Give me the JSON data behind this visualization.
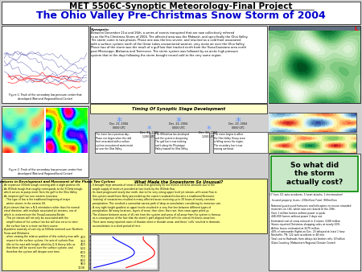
{
  "title1": "MET 5506C-Synoptic Meteorology-Final Project",
  "title2": "The Ohio Valley Pre-Christmas Snow Storm of 2004",
  "bg_color": "#d0d0d0",
  "title1_color": "#000000",
  "title2_color": "#0000cc",
  "synopsis_title": "Synopsis:",
  "synopsis_text": "Between December 21st and 26th, a series of events transpired that are now collectively referred\nto as the Pre-Christmas Storm of 2004. The affected area was the Midwest, and specifically the Ohio Valley.\nThe storm came in two phases. Phase one was the less severe, and resulted as a cold front associated\nwith a surface cyclone north of the Great Lakes encountered warmer, very moist air over the Ohio Valley.\nPhase two of the storm was the result of a gulf low that tracked north from the Texas/Louisiana area north\npast Mississippi, Alabama and Tennessee. The storm system was followed by an arctic high pressure\nsystem that in the days following the storm brought record cold to the very same region.",
  "timing_title": "Timing Of Synoptic Stage Development",
  "what_made_title": "What Made the Snowstorm So Unusual?",
  "what_made_text": "- It brought large amounts of snow to areas that generally do not receive extreme amounts due to the\n  ample supply of moisture provided at low levels by the 850mb flow.\n- Its track progressed nearly due north, due to the very strong upper level jet stream--with zonal flow in\n  this system would have likely proceeded up the eastern seaboard to become a traditional Noreaster.\n- 'training' of snowstorms resulted in many affected areas receiving up to 20 hours of nearly constant\n  precipitation. This resulted a somewhat narrow path of deep accumulations considering its immense size.\n- A very tight height gradient at upper levels resulted in a very fine line between different types of\n  precipitation. At many locations, layers of snow, then sleet, then rain, then snow again piled up.\n- The distance between areas of all-rain from the system and areas of all-snow from the system is famous\n  as a consequence of the fact that the storm's path aligned itself with the critical thickness snow line.\n- There were many reported cases of thunder-sleet or thunder-snow, and these 'cells' resulted in dramatic\n  accumulations in a short period of time.",
  "key_title": "Key Synoptic Features in Development and Movement of the Phase Two Cyclone",
  "key_text": "- An expansive 500mb trough covering with a slight positive tilt.\n- An 850mb trough that roughly corresponds to the 500mb trough,\n  which serves to pump moist from the gulf to the Ohio Valley.\n- An incipient gulf low over eastern Louisiana.\n   - This type of low is the traditional beginning of major\n     winter storms in the eastern US.\n- A jet stream that has a N-S orientation rather than the normal\n  zonal direction, with multiple associated jet streams, one of\n  which is centered over the Texas/Louisiana Border.\n   - This jet stream will not only be associated with the\n     amplification of the surface low but will also serve to steer\n     the surface low to a more northern course.\n- A positive anomaly of vorticity at 500mb centered over Northern\n  Texas and Oklahoma.\n   - when viewing the relative position of this vorticity max with\n     respect to the surface cyclone, the axis of cyclonic flow\n     tilts to the east with height, which by Q-G theory tells us\n     that there will be ascent over the surface cyclone, and\n     therefore the cyclone will deepen over time.",
  "cost_title": "So what did\nthe storm\nactually cost?",
  "cost_text": "17 lives (11 auto accidents, 5 heart attacks, 1 electrocution)\n- Insured property losses: $230 million; Total: $900 million\n- National guard used Humvees and helicopters to rescue stranded\n  motorists on I-64, which was not cleared til the 29th.\n- Over 1 million homes without power at peak.\n- 448,000 homes without power 2 days out.\n- Estimated cost of snow removal in 4 states: $108 million\n- Stores reported Christmas shopping sales at nearly 60%.\n- Airline losses estimated at $270 million.\n- 40% of nationwide flights on Dec. 23 delayed at least 1 hour.\n- Nashville, TN: 122 auto accidents in 48 min.\n- Total cost to Railroads from delays b/o broken rails: $7million\n  (Data Courtesy: Midwestern Regional Climate Center)",
  "yellow_bg": "#ffff99",
  "light_yellow": "#ffffcc",
  "box_border": "#000000",
  "white": "#ffffff",
  "green_box": "#c8e8c8",
  "green_border": "#008800"
}
